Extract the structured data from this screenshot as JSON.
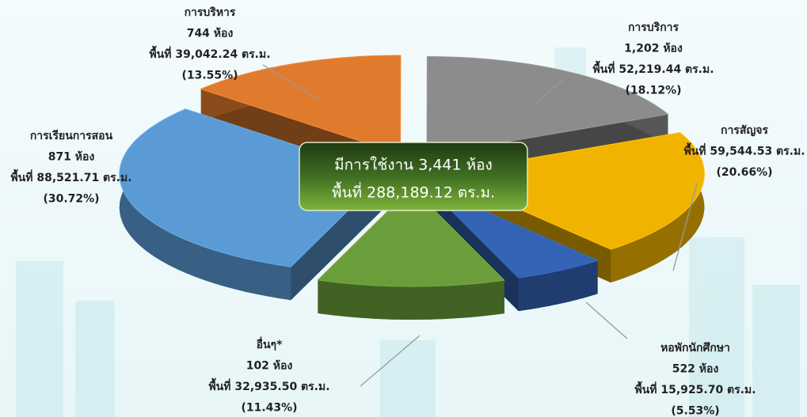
{
  "chart_data": {
    "type": "pie3d",
    "categories": [
      "การบริหาร",
      "การบริการ",
      "การสัญจร",
      "หอพักนักศึกษา",
      "อื่นๆ*",
      "การเรียนการสอน"
    ],
    "room_labels": [
      "744 ห้อง",
      "1,202 ห้อง",
      null,
      "522 ห้อง",
      "102 ห้อง",
      "871 ห้อง"
    ],
    "area_labels": [
      "พื้นที่ 39,042.24 ตร.ม.",
      "พื้นที่ 52,219.44 ตร.ม.",
      "พื้นที่ 59,544.53 ตร.ม.",
      "พื้นที่ 15,925.70 ตร.ม.",
      "พื้นที่ 32,935.50 ตร.ม.",
      "พื้นที่ 88,521.71 ตร.ม."
    ],
    "values": [
      13.55,
      18.12,
      20.66,
      5.53,
      11.43,
      30.72
    ],
    "value_labels": [
      "(13.55%)",
      "(18.12%)",
      "(20.66%)",
      "(5.53%)",
      "(11.43%)",
      "(30.72%)"
    ],
    "colors": [
      "#e07b2e",
      "#8c8c8c",
      "#f0b400",
      "#3463b4",
      "#6b9e3a",
      "#5b9bd5"
    ],
    "annotations": [
      "มีการใช้งาน 3,441 ห้อง",
      "พื้นที่ 288,189.12 ตร.ม."
    ]
  }
}
